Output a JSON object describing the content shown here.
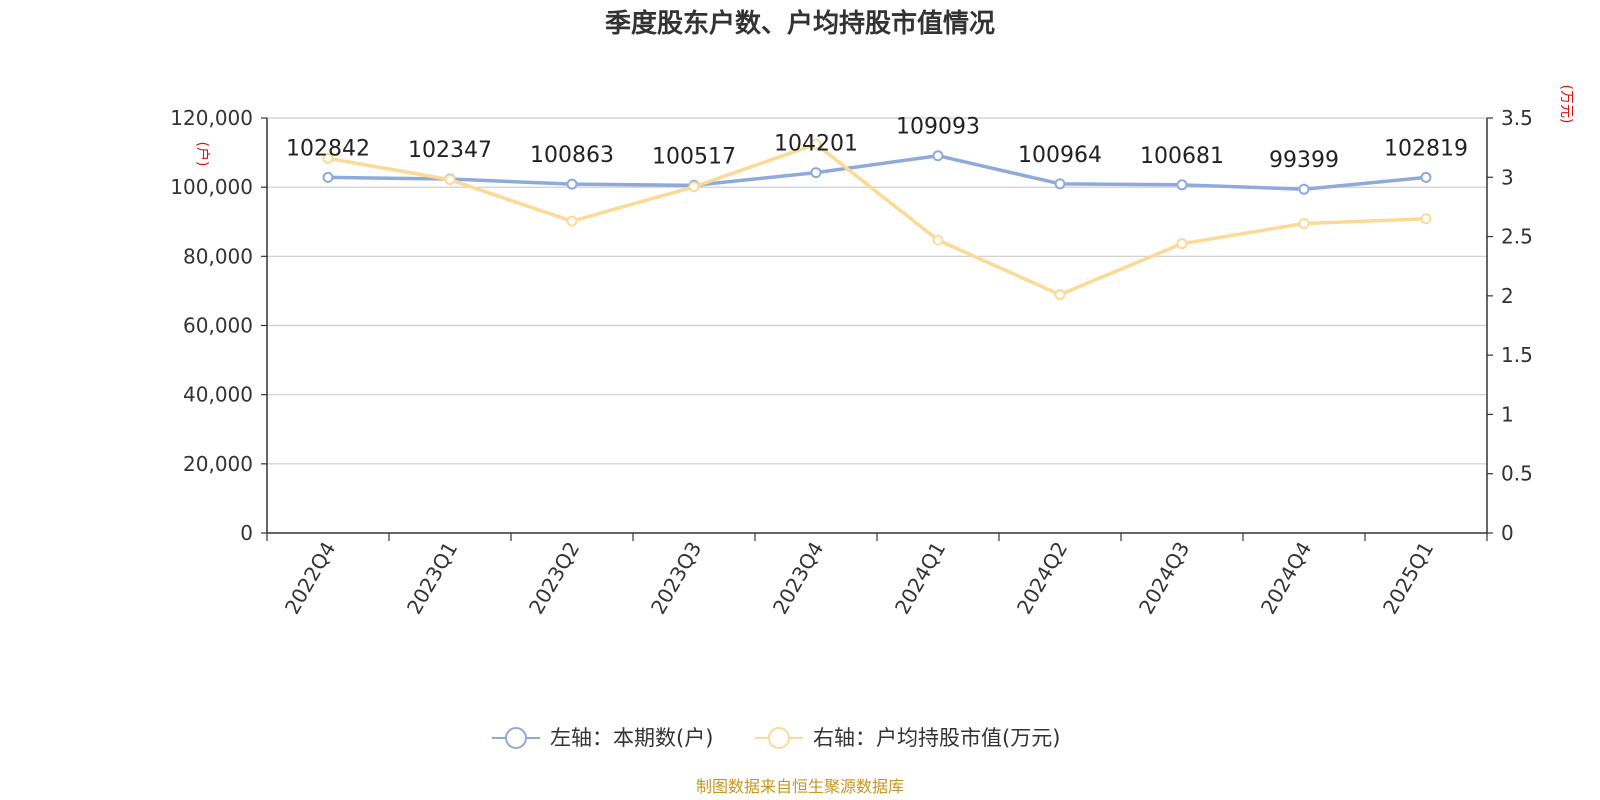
{
  "chart_data": {
    "type": "line",
    "title": "季度股东户数、户均持股市值情况",
    "categories": [
      "2022Q4",
      "2023Q1",
      "2023Q2",
      "2023Q3",
      "2023Q4",
      "2024Q1",
      "2024Q2",
      "2024Q3",
      "2024Q4",
      "2025Q1"
    ],
    "series": [
      {
        "name": "左轴：本期数(户)",
        "axis": "left",
        "color": "#8eaadb",
        "values": [
          102842,
          102347,
          100863,
          100517,
          104201,
          109093,
          100964,
          100681,
          99399,
          102819
        ],
        "labels": [
          "102842",
          "102347",
          "100863",
          "100517",
          "104201",
          "109093",
          "100964",
          "100681",
          "99399",
          "102819"
        ]
      },
      {
        "name": "右轴：户均持股市值(万元)",
        "axis": "right",
        "color": "#fcd997",
        "values": [
          3.16,
          2.98,
          2.63,
          2.92,
          3.28,
          2.47,
          2.01,
          2.44,
          2.61,
          2.65
        ]
      }
    ],
    "y_left": {
      "unit": "(户)",
      "ylim": [
        0,
        120000
      ],
      "ticks": [
        0,
        20000,
        40000,
        60000,
        80000,
        100000,
        120000
      ],
      "tick_labels": [
        "0",
        "20,000",
        "40,000",
        "60,000",
        "80,000",
        "100,000",
        "120,000"
      ]
    },
    "y_right": {
      "unit": "(万元)",
      "ylim": [
        0,
        3.5
      ],
      "ticks": [
        0,
        0.5,
        1,
        1.5,
        2,
        2.5,
        3,
        3.5
      ],
      "tick_labels": [
        "0",
        "0.5",
        "1",
        "1.5",
        "2",
        "2.5",
        "3",
        "3.5"
      ]
    },
    "grid": true,
    "legend_position": "bottom-center",
    "source": "制图数据来自恒生聚源数据库"
  }
}
